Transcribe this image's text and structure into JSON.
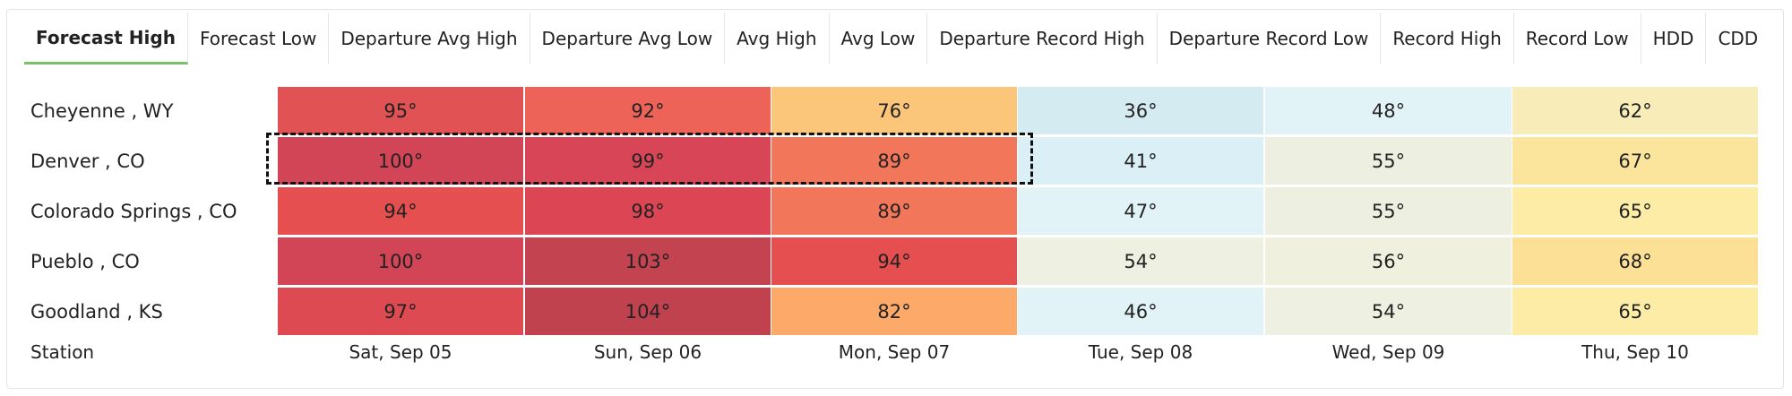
{
  "tabs": [
    {
      "label": "Forecast High",
      "active": true
    },
    {
      "label": "Forecast Low",
      "active": false
    },
    {
      "label": "Departure Avg High",
      "active": false
    },
    {
      "label": "Departure Avg Low",
      "active": false
    },
    {
      "label": "Avg High",
      "active": false
    },
    {
      "label": "Avg Low",
      "active": false
    },
    {
      "label": "Departure Record High",
      "active": false
    },
    {
      "label": "Departure Record Low",
      "active": false
    },
    {
      "label": "Record High",
      "active": false
    },
    {
      "label": "Record Low",
      "active": false
    },
    {
      "label": "HDD",
      "active": false
    },
    {
      "label": "CDD",
      "active": false
    }
  ],
  "dates": [
    "Sat, Sep 05",
    "Sun, Sep 06",
    "Mon, Sep 07",
    "Tue, Sep 08",
    "Wed, Sep 09",
    "Thu, Sep 10"
  ],
  "station_header": "Station",
  "rows": [
    {
      "station": "Cheyenne , WY",
      "values": [
        "95°",
        "92°",
        "76°",
        "36°",
        "48°",
        "62°"
      ],
      "colors": [
        "#e05253",
        "#ee6358",
        "#fbc67a",
        "#d4ebf2",
        "#e2f3f8",
        "#f8edb9"
      ]
    },
    {
      "station": "Denver , CO",
      "values": [
        "100°",
        "99°",
        "89°",
        "41°",
        "55°",
        "67°"
      ],
      "colors": [
        "#d24556",
        "#d84556",
        "#f2775a",
        "#dbf0f6",
        "#edf0e0",
        "#fbe59c"
      ]
    },
    {
      "station": "Colorado Springs , CO",
      "values": [
        "94°",
        "98°",
        "89°",
        "47°",
        "55°",
        "65°"
      ],
      "colors": [
        "#e54f4f",
        "#dc4553",
        "#f2775a",
        "#e2f3f8",
        "#edf0e0",
        "#fdeca5"
      ]
    },
    {
      "station": "Pueblo , CO",
      "values": [
        "100°",
        "103°",
        "94°",
        "54°",
        "56°",
        "68°"
      ],
      "colors": [
        "#d24556",
        "#c34351",
        "#e54f4f",
        "#eef1e1",
        "#eff0de",
        "#fbe095"
      ]
    },
    {
      "station": "Goodland , KS",
      "values": [
        "97°",
        "104°",
        "82°",
        "46°",
        "54°",
        "65°"
      ],
      "colors": [
        "#de4a51",
        "#c1424f",
        "#fca96a",
        "#e2f3f8",
        "#eef1e1",
        "#fdeca5"
      ]
    }
  ],
  "highlighted_row": "Denver , CO"
}
